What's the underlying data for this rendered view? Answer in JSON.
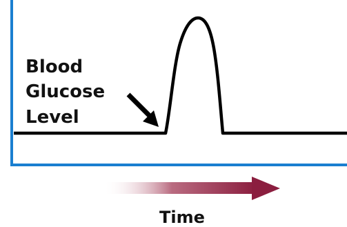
{
  "labels": {
    "y_line1": "Blood",
    "y_line2": "Glucose",
    "y_line3": "Level",
    "x_axis": "Time"
  },
  "colors": {
    "axis": "#1a7fd0",
    "curve": "#000000",
    "arrow_start": "#ffffff",
    "arrow_end": "#8b1e3f"
  },
  "icons": {
    "pointer": "black-arrow-icon",
    "time_direction": "gradient-arrow-icon"
  }
}
